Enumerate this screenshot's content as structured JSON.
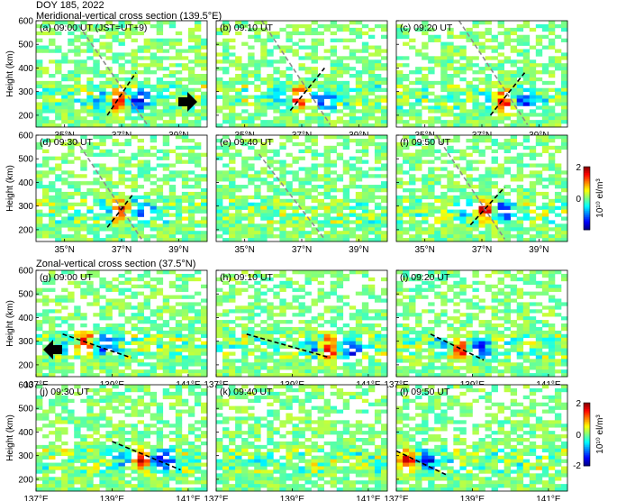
{
  "figure": {
    "title": "DOY 185, 2022",
    "section1_title": "Meridional-vertical cross section (139.5°E)",
    "section2_title": "Zonal-vertical cross section (37.5°N)",
    "ylabel": "Height (km)"
  },
  "colorbars": [
    {
      "max_label": "2",
      "mid_label": "0",
      "min_label": "",
      "unit_label": "10¹⁰ el/m³",
      "range": [
        -2,
        2
      ]
    },
    {
      "max_label": "2",
      "mid_label": "0",
      "min_label": "-2",
      "unit_label": "10¹⁰ el/m³",
      "range": [
        -2,
        2
      ]
    }
  ],
  "colors": {
    "white_gap": "#ffffff",
    "dashed_black": "#000000",
    "dashed_gray": "#8c8c8c",
    "arrow": "#000000"
  },
  "chart_data": [
    {
      "type": "heatmap",
      "panel": "(a) 09:00 UT (JST=UT+9)",
      "section": "meridional",
      "xticks": [
        "35°N",
        "37°N",
        "39°N"
      ],
      "xlim": [
        34,
        40
      ],
      "ylim": [
        150,
        600
      ],
      "yticks": [
        "200",
        "300",
        "400",
        "500",
        "600"
      ],
      "hot_center": [
        36.9,
        260
      ],
      "dashed_black": [
        [
          36.5,
          200
        ],
        [
          37.5,
          380
        ]
      ],
      "dashed_gray": [
        [
          35.5,
          580
        ],
        [
          37.9,
          160
        ]
      ],
      "arrow": "right"
    },
    {
      "type": "heatmap",
      "panel": "(b) 09:10 UT",
      "section": "meridional",
      "xticks": [
        "35°N",
        "37°N",
        "39°N"
      ],
      "xlim": [
        34,
        40
      ],
      "ylim": [
        150,
        600
      ],
      "yticks": [],
      "hot_center": [
        37.0,
        270
      ],
      "dashed_black": [
        [
          36.6,
          220
        ],
        [
          37.8,
          400
        ]
      ],
      "dashed_gray": [
        [
          35.6,
          600
        ],
        [
          38.0,
          160
        ]
      ]
    },
    {
      "type": "heatmap",
      "panel": "(c) 09:20 UT",
      "section": "meridional",
      "xticks": [
        "35°N",
        "37°N",
        "39°N"
      ],
      "xlim": [
        34,
        40
      ],
      "ylim": [
        150,
        600
      ],
      "yticks": [],
      "hot_center": [
        37.8,
        260
      ],
      "dashed_black": [
        [
          37.3,
          200
        ],
        [
          38.5,
          380
        ]
      ],
      "dashed_gray": [
        [
          36.2,
          600
        ],
        [
          38.6,
          160
        ]
      ]
    },
    {
      "type": "heatmap",
      "panel": "(d) 09:30 UT",
      "section": "meridional",
      "xticks": [
        "35°N",
        "37°N",
        "39°N"
      ],
      "xlim": [
        34,
        40
      ],
      "ylim": [
        150,
        600
      ],
      "yticks": [
        "200",
        "300",
        "400",
        "500",
        "600"
      ],
      "hot_center": [
        37.0,
        280
      ],
      "dashed_black": [
        [
          36.5,
          210
        ],
        [
          37.4,
          350
        ]
      ],
      "dashed_gray": [
        [
          35.4,
          580
        ],
        [
          37.7,
          160
        ]
      ]
    },
    {
      "type": "heatmap",
      "panel": "(e) 09:40 UT",
      "section": "meridional",
      "xticks": [
        "35°N",
        "37°N",
        "39°N"
      ],
      "xlim": [
        34,
        40
      ],
      "ylim": [
        150,
        600
      ],
      "yticks": [],
      "hot_center": null,
      "dashed_gray": [
        [
          35.5,
          520
        ],
        [
          37.8,
          160
        ]
      ]
    },
    {
      "type": "heatmap",
      "panel": "(f) 09:50 UT",
      "section": "meridional",
      "xticks": [
        "35°N",
        "37°N",
        "39°N"
      ],
      "xlim": [
        34,
        40
      ],
      "ylim": [
        150,
        600
      ],
      "yticks": [],
      "hot_center": [
        37.1,
        280
      ],
      "dashed_black": [
        [
          36.6,
          220
        ],
        [
          37.8,
          380
        ]
      ],
      "dashed_gray": [
        [
          35.4,
          600
        ],
        [
          37.8,
          160
        ]
      ]
    },
    {
      "type": "heatmap",
      "panel": "(g) 09:00 UT",
      "section": "zonal",
      "xticks": [
        "137°E",
        "139°E",
        "141°E"
      ],
      "xlim": [
        137,
        141.5
      ],
      "ylim": [
        150,
        600
      ],
      "yticks": [
        "200",
        "300",
        "400",
        "500",
        "600"
      ],
      "hot_center": [
        138.3,
        290
      ],
      "dashed_black": [
        [
          137.7,
          330
        ],
        [
          139.5,
          230
        ]
      ],
      "arrow": "left"
    },
    {
      "type": "heatmap",
      "panel": "(h) 09:10 UT",
      "section": "zonal",
      "xticks": [
        "137°E",
        "139°E",
        "141°E"
      ],
      "xlim": [
        137,
        141.5
      ],
      "ylim": [
        150,
        600
      ],
      "yticks": [],
      "hot_center": [
        140.0,
        270
      ],
      "dashed_black": [
        [
          137.8,
          330
        ],
        [
          140.0,
          230
        ]
      ]
    },
    {
      "type": "heatmap",
      "panel": "(i) 09:20 UT",
      "section": "zonal",
      "xticks": [
        "137°E",
        "139°E",
        "141°E"
      ],
      "xlim": [
        137,
        141.5
      ],
      "ylim": [
        150,
        600
      ],
      "yticks": [],
      "hot_center": [
        138.7,
        270
      ],
      "dashed_black": [
        [
          137.9,
          330
        ],
        [
          139.3,
          220
        ]
      ]
    },
    {
      "type": "heatmap",
      "panel": "(j) 09:30 UT",
      "section": "zonal",
      "xticks": [
        "137°E",
        "139°E",
        "141°E"
      ],
      "xlim": [
        137,
        141.5
      ],
      "ylim": [
        150,
        600
      ],
      "yticks": [
        "200",
        "300",
        "400",
        "500",
        "600"
      ],
      "hot_center": [
        139.8,
        280
      ],
      "dashed_black": [
        [
          139.0,
          360
        ],
        [
          140.8,
          240
        ]
      ]
    },
    {
      "type": "heatmap",
      "panel": "(k) 09:40 UT",
      "section": "zonal",
      "xticks": [
        "137°E",
        "139°E",
        "141°E"
      ],
      "xlim": [
        137,
        141.5
      ],
      "ylim": [
        150,
        600
      ],
      "yticks": [],
      "hot_center": null
    },
    {
      "type": "heatmap",
      "panel": "(l) 09:50 UT",
      "section": "zonal",
      "xticks": [
        "137°E",
        "139°E",
        "141°E"
      ],
      "xlim": [
        137,
        141.5
      ],
      "ylim": [
        150,
        600
      ],
      "yticks": [],
      "hot_center": [
        137.3,
        280
      ],
      "dashed_black": [
        [
          137.0,
          320
        ],
        [
          138.3,
          220
        ]
      ]
    }
  ]
}
